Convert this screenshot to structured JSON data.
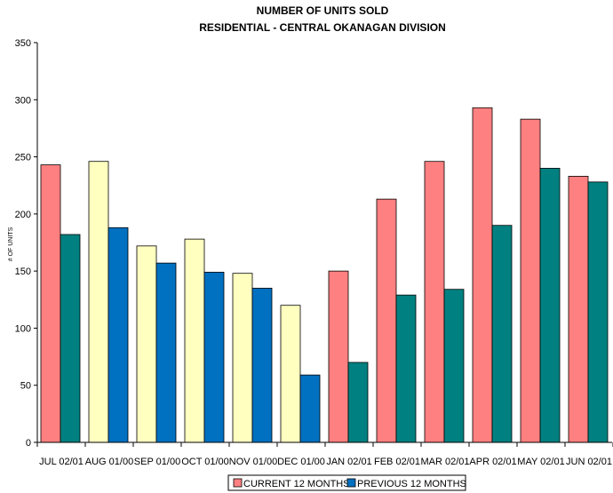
{
  "chart_data": {
    "type": "bar",
    "title": "NUMBER OF UNITS SOLD",
    "subtitle": "RESIDENTIAL - CENTRAL OKANAGAN DIVISION",
    "xlabel": "",
    "ylabel": "# OF UNITS",
    "ylim": [
      0,
      350
    ],
    "yticks": [
      0,
      50,
      100,
      150,
      200,
      250,
      300,
      350
    ],
    "grid": false,
    "legend_position": "bottom",
    "categories": [
      "JUL 02/01",
      "AUG 01/00",
      "SEP 01/00",
      "OCT 01/00",
      "NOV 01/00",
      "DEC 01/00",
      "JAN 02/01",
      "FEB 02/01",
      "MAR 02/01",
      "APR 02/01",
      "MAY 02/01",
      "JUN 02/01"
    ],
    "series": [
      {
        "name": "CURRENT 12 MONTHS",
        "values": [
          243,
          246,
          172,
          178,
          148,
          120,
          150,
          213,
          246,
          293,
          283,
          233
        ],
        "colors": [
          "#ff8080",
          "#ffffc0",
          "#ffffc0",
          "#ffffc0",
          "#ffffc0",
          "#ffffc0",
          "#ff8080",
          "#ff8080",
          "#ff8080",
          "#ff8080",
          "#ff8080",
          "#ff8080"
        ]
      },
      {
        "name": "PREVIOUS 12 MONTHS",
        "values": [
          182,
          188,
          157,
          149,
          135,
          59,
          70,
          129,
          134,
          190,
          240,
          228
        ],
        "colors": [
          "#008080",
          "#0070c0",
          "#0070c0",
          "#0070c0",
          "#0070c0",
          "#0070c0",
          "#008080",
          "#008080",
          "#008080",
          "#008080",
          "#008080",
          "#008080"
        ]
      }
    ],
    "legend_colors": [
      "#ff8080",
      "#0070c0"
    ]
  }
}
